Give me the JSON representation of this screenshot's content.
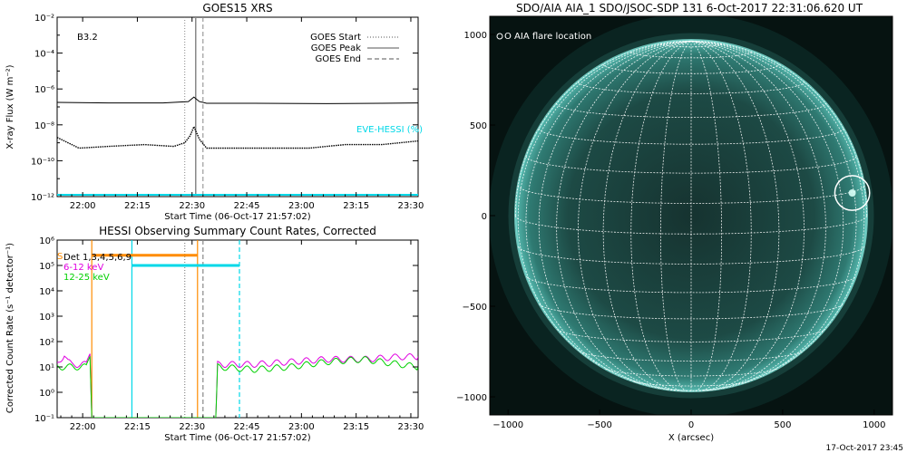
{
  "chart_data": [
    {
      "type": "line",
      "title": "GOES15 XRS",
      "class_label": "B3.2",
      "xlabel": "Start Time (06-Oct-17 21:57:02)",
      "ylabel": "X-ray Flux (W m⁻²)",
      "yscale": "log",
      "x_range_min": [
        -4,
        95
      ],
      "ylim_exp": [
        -12,
        -2
      ],
      "x_ticks": [
        {
          "t": 3,
          "label": "22:00"
        },
        {
          "t": 18,
          "label": "22:15"
        },
        {
          "t": 33,
          "label": "22:30"
        },
        {
          "t": 48,
          "label": "22:45"
        },
        {
          "t": 63,
          "label": "23:00"
        },
        {
          "t": 78,
          "label": "23:15"
        },
        {
          "t": 93,
          "label": "23:30"
        }
      ],
      "y_ticks": [
        {
          "exp": -2,
          "label": "10⁻²"
        },
        {
          "exp": -4,
          "label": "10⁻⁴"
        },
        {
          "exp": -6,
          "label": "10⁻⁶"
        },
        {
          "exp": -8,
          "label": "10⁻⁸"
        },
        {
          "exp": -10,
          "label": "10⁻¹⁰"
        },
        {
          "exp": -12,
          "label": "10⁻¹²"
        }
      ],
      "legend": [
        {
          "label": "GOES Start",
          "style": "dotted"
        },
        {
          "label": "GOES Peak",
          "style": "solid"
        },
        {
          "label": "GOES End",
          "style": "dashed"
        }
      ],
      "event_lines_min": {
        "start": 31,
        "peak": 34,
        "end": 36
      },
      "annotation": "EVE-HESSI (%)",
      "series": [
        {
          "channel": "long",
          "color": "#000000",
          "points": [
            [
              -4,
              -6.75
            ],
            [
              10,
              -6.78
            ],
            [
              25,
              -6.78
            ],
            [
              32,
              -6.7
            ],
            [
              33.5,
              -6.45
            ],
            [
              35,
              -6.7
            ],
            [
              37,
              -6.8
            ],
            [
              50,
              -6.8
            ],
            [
              70,
              -6.82
            ],
            [
              85,
              -6.8
            ],
            [
              95,
              -6.78
            ]
          ]
        },
        {
          "channel": "short",
          "color": "#000000",
          "style": "dotted",
          "points": [
            [
              -4,
              -8.7
            ],
            [
              2,
              -9.3
            ],
            [
              10,
              -9.2
            ],
            [
              20,
              -9.1
            ],
            [
              28,
              -9.2
            ],
            [
              31,
              -9.0
            ],
            [
              32.5,
              -8.6
            ],
            [
              33.5,
              -8.1
            ],
            [
              35,
              -8.8
            ],
            [
              37,
              -9.3
            ],
            [
              50,
              -9.3
            ],
            [
              65,
              -9.3
            ],
            [
              75,
              -9.1
            ],
            [
              85,
              -9.1
            ],
            [
              95,
              -8.9
            ]
          ]
        }
      ],
      "baseline_cyan": {
        "color": "#00d8e8",
        "exp": -11.9
      }
    },
    {
      "type": "line",
      "title": "HESSI Observing Summary Count Rates, Corrected",
      "xlabel": "Start Time (06-Oct-17 21:57:02)",
      "ylabel": "Corrected Count Rate (s⁻¹ detector⁻¹)",
      "yscale": "log",
      "x_range_min": [
        -4,
        95
      ],
      "ylim_exp": [
        -1,
        6
      ],
      "x_ticks": [
        {
          "t": 3,
          "label": "22:00"
        },
        {
          "t": 18,
          "label": "22:15"
        },
        {
          "t": 33,
          "label": "22:30"
        },
        {
          "t": 48,
          "label": "22:45"
        },
        {
          "t": 63,
          "label": "23:00"
        },
        {
          "t": 78,
          "label": "23:15"
        },
        {
          "t": 93,
          "label": "23:30"
        }
      ],
      "y_ticks": [
        {
          "exp": 6,
          "label": "10⁶"
        },
        {
          "exp": 5,
          "label": "10⁵"
        },
        {
          "exp": 4,
          "label": "10⁴"
        },
        {
          "exp": 3,
          "label": "10³"
        },
        {
          "exp": 2,
          "label": "10²"
        },
        {
          "exp": 1,
          "label": "10¹"
        },
        {
          "exp": 0,
          "label": "10⁰"
        },
        {
          "exp": -1,
          "label": "10⁻¹"
        }
      ],
      "legend": [
        {
          "label": "Det 1,3,4,5,6,9",
          "color": "#000000"
        },
        {
          "label": "6-12 keV",
          "color": "#e000e0"
        },
        {
          "label": "12-25 keV",
          "color": "#00d000"
        }
      ],
      "legend_s_label": "S",
      "vlines": [
        {
          "t": 5.5,
          "color": "#ff8c00",
          "style": "solid"
        },
        {
          "t": 16.5,
          "color": "#00d8e8",
          "style": "solid"
        },
        {
          "t": 31,
          "color": "#888888",
          "style": "dotted"
        },
        {
          "t": 34.5,
          "color": "#ff8c00",
          "style": "solid"
        },
        {
          "t": 36,
          "color": "#888888",
          "style": "dashed"
        },
        {
          "t": 46,
          "color": "#00d8e8",
          "style": "dashed"
        }
      ],
      "hbars": [
        {
          "t0": 5.5,
          "t1": 34.5,
          "exp": 5.4,
          "color": "#ff8c00"
        },
        {
          "t0": 16.5,
          "t1": 46,
          "exp": 5.0,
          "color": "#00d8e8"
        }
      ],
      "series": [
        {
          "name": "6-12 keV",
          "color": "#e000e0",
          "points": [
            [
              -4,
              1.1
            ],
            [
              -2,
              1.5
            ],
            [
              -1,
              1.2
            ],
            [
              0,
              1.1
            ],
            [
              4,
              1.1
            ],
            [
              5,
              1.6
            ],
            [
              5.5,
              -1
            ],
            [
              39.5,
              -1
            ],
            [
              40,
              1.1
            ],
            [
              50,
              1.1
            ],
            [
              60,
              1.2
            ],
            [
              70,
              1.3
            ],
            [
              80,
              1.3
            ],
            [
              90,
              1.4
            ],
            [
              95,
              1.4
            ]
          ]
        },
        {
          "name": "12-25 keV",
          "color": "#00d000",
          "points": [
            [
              -4,
              1.0
            ],
            [
              0,
              1.0
            ],
            [
              4,
              1.0
            ],
            [
              5,
              1.5
            ],
            [
              5.5,
              -1
            ],
            [
              39.5,
              -1
            ],
            [
              40,
              1.0
            ],
            [
              50,
              0.9
            ],
            [
              60,
              1.0
            ],
            [
              70,
              1.2
            ],
            [
              80,
              1.3
            ],
            [
              90,
              1.1
            ],
            [
              95,
              1.0
            ]
          ]
        }
      ]
    },
    {
      "type": "heatmap",
      "title": "SDO/AIA AIA_1 SDO/JSOC-SDP 131  6-Oct-2017 22:31:06.620 UT",
      "xlabel": "X (arcsec)",
      "x_range": [
        -1100,
        1100
      ],
      "y_range": [
        -1100,
        1100
      ],
      "x_ticks": [
        -1000,
        -500,
        0,
        500,
        1000
      ],
      "y_ticks": [
        -1000,
        -500,
        0,
        500,
        1000
      ],
      "disk_radius_arcsec": 960,
      "grid": "heliographic",
      "legend": "O AIA flare location",
      "flare_location": {
        "x": 880,
        "y": 125,
        "radius": 95
      },
      "colormap": "teal"
    }
  ],
  "footer": {
    "timestamp": "17-Oct-2017 23:45"
  }
}
